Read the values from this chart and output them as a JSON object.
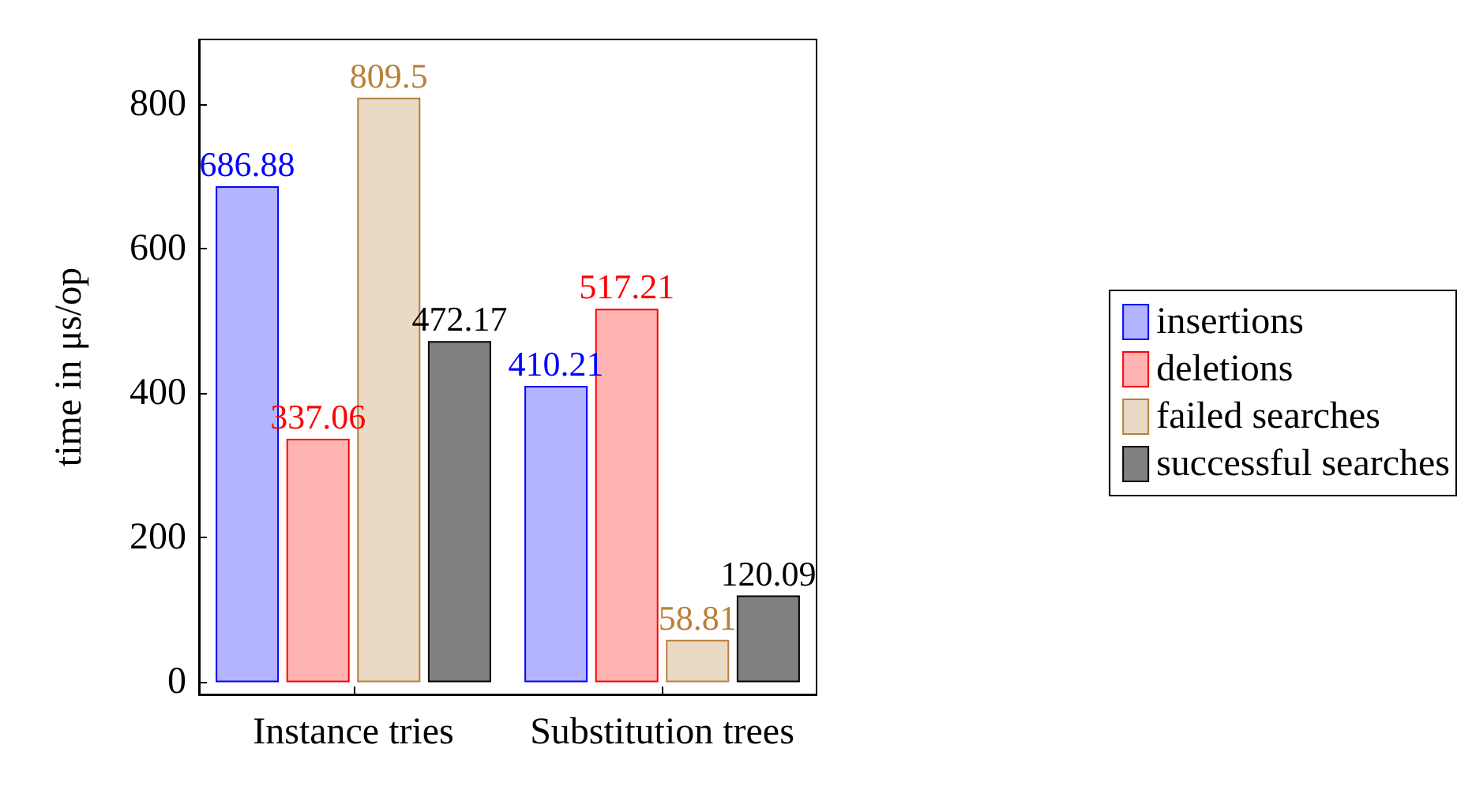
{
  "chart_data": {
    "type": "bar",
    "ylabel": "time in μs/op",
    "categories": [
      "Instance tries",
      "Substitution trees"
    ],
    "series": [
      {
        "name": "insertions",
        "color": "#b3b3ff",
        "values": [
          686.88,
          410.21
        ]
      },
      {
        "name": "deletions",
        "color": "#ffb3b3",
        "values": [
          337.06,
          517.21
        ]
      },
      {
        "name": "failed searches",
        "color": "#ead9c4",
        "values": [
          809.5,
          58.81
        ]
      },
      {
        "name": "successful searches",
        "color": "#808080",
        "values": [
          472.17,
          120.09
        ]
      }
    ],
    "ylim": [
      -17,
      890
    ],
    "yticks": [
      0,
      200,
      400,
      600,
      800
    ],
    "data_labels": true,
    "legend": "right",
    "grid": false
  }
}
